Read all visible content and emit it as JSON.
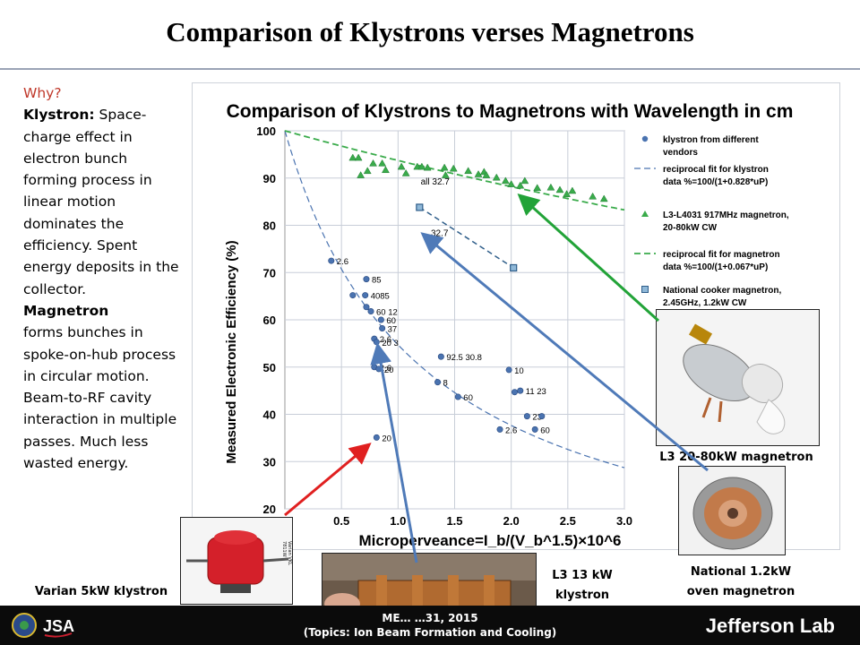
{
  "slide": {
    "title": "Comparison of Klystrons verses Magnetrons"
  },
  "left_text": {
    "why": "Why?",
    "klystron_label": "Klystron:",
    "klystron_body": " Space-charge effect in electron bunch forming process in linear motion dominates the efficiency. Spent energy deposits in the collector.",
    "magnetron_label": "Magnetron",
    "magnetron_body": "forms bunches in spoke-on-hub process in circular motion. Beam-to-RF cavity interaction in multiple passes. Much less wasted energy."
  },
  "captions": {
    "l3_magnetron": "L3 20-80kW magnetron",
    "national": "National 1.2kW oven magnetron",
    "varian": "Varian 5kW klystron",
    "l3_klystron": "L3 13 kW klystron",
    "varian_label": "Varian VKL 7811W"
  },
  "footer": {
    "line1": "ME… …31, 2015",
    "line2": "(Topics: Ion Beam Formation and Cooling)",
    "brand": "Jefferson Lab"
  },
  "colors": {
    "klystron": "#4a73b0",
    "magnetron": "#3aab4b",
    "national": "#2f5e8a",
    "arrow_red": "#e02020",
    "arrow_green": "#22a338",
    "arrow_blue": "#4f7ab8"
  },
  "chart_data": {
    "type": "scatter",
    "title": "Comparison of Klystrons to  Magnetrons with Wavelength in cm",
    "xlabel": "Microperveance=I_b/(V_b^1.5)×10^6",
    "ylabel": "Measured Electronic Efficiency (%)",
    "xlim": [
      0,
      3.0
    ],
    "ylim": [
      20,
      100
    ],
    "x_ticks": [
      "0.5",
      "1.0",
      "1.5",
      "2.0",
      "2.5",
      "3.0"
    ],
    "y_ticks": [
      "20",
      "30",
      "40",
      "50",
      "60",
      "70",
      "80",
      "90",
      "100"
    ],
    "grid": true,
    "legend_position": "right",
    "series": [
      {
        "name": "klystron from different vendors",
        "kind": "points",
        "marker": "circle",
        "points": [
          {
            "x": 0.41,
            "y": 72.5,
            "label": "2.6"
          },
          {
            "x": 0.6,
            "y": 65.2,
            "label": ""
          },
          {
            "x": 0.72,
            "y": 68.6,
            "label": "85"
          },
          {
            "x": 0.71,
            "y": 65.2,
            "label": "4085"
          },
          {
            "x": 0.72,
            "y": 62.7,
            "label": ""
          },
          {
            "x": 0.76,
            "y": 61.8,
            "label": "60 12"
          },
          {
            "x": 0.85,
            "y": 60.0,
            "label": "60"
          },
          {
            "x": 0.86,
            "y": 58.2,
            "label": "37"
          },
          {
            "x": 0.79,
            "y": 56.0,
            "label": "2.6"
          },
          {
            "x": 0.81,
            "y": 55.3,
            "label": "20 3"
          },
          {
            "x": 0.79,
            "y": 50.0,
            "label": "2.6"
          },
          {
            "x": 0.83,
            "y": 49.6,
            "label": "20"
          },
          {
            "x": 1.38,
            "y": 52.2,
            "label": "92.5 30.8"
          },
          {
            "x": 1.35,
            "y": 46.8,
            "label": "8"
          },
          {
            "x": 1.53,
            "y": 43.7,
            "label": "60"
          },
          {
            "x": 1.98,
            "y": 49.4,
            "label": "10"
          },
          {
            "x": 2.03,
            "y": 44.7,
            "label": ""
          },
          {
            "x": 2.08,
            "y": 45.0,
            "label": "11 23"
          },
          {
            "x": 2.14,
            "y": 39.6,
            "label": "23"
          },
          {
            "x": 2.27,
            "y": 39.6,
            "label": ""
          },
          {
            "x": 1.9,
            "y": 36.8,
            "label": "2.6"
          },
          {
            "x": 2.21,
            "y": 36.8,
            "label": "60"
          },
          {
            "x": 0.81,
            "y": 35.1,
            "label": "20"
          }
        ]
      },
      {
        "name": "reciprocal fit for klystron data %=100/(1+0.828*uP)",
        "kind": "line",
        "style": "dashed",
        "formula_k": 0.828,
        "x_range": [
          0.0,
          3.0
        ]
      },
      {
        "name": "L3-L4031 917MHz magnetron, 20-80kW CW",
        "kind": "points",
        "marker": "triangle",
        "points": [
          {
            "x": 0.6,
            "y": 94.3
          },
          {
            "x": 0.65,
            "y": 94.3
          },
          {
            "x": 0.78,
            "y": 93.1
          },
          {
            "x": 0.86,
            "y": 93.1
          },
          {
            "x": 0.73,
            "y": 91.5
          },
          {
            "x": 0.67,
            "y": 90.6
          },
          {
            "x": 0.89,
            "y": 91.7
          },
          {
            "x": 1.03,
            "y": 92.4
          },
          {
            "x": 1.07,
            "y": 91.0
          },
          {
            "x": 1.17,
            "y": 92.4
          },
          {
            "x": 1.21,
            "y": 92.4
          },
          {
            "x": 1.26,
            "y": 92.2
          },
          {
            "x": 1.41,
            "y": 92.2
          },
          {
            "x": 1.49,
            "y": 92.0
          },
          {
            "x": 1.42,
            "y": 90.6
          },
          {
            "x": 1.62,
            "y": 91.5
          },
          {
            "x": 1.71,
            "y": 90.8
          },
          {
            "x": 1.76,
            "y": 91.3
          },
          {
            "x": 1.78,
            "y": 90.6
          },
          {
            "x": 1.87,
            "y": 90.1
          },
          {
            "x": 1.95,
            "y": 89.4
          },
          {
            "x": 2.0,
            "y": 88.7
          },
          {
            "x": 2.08,
            "y": 88.4
          },
          {
            "x": 2.12,
            "y": 89.4
          },
          {
            "x": 2.23,
            "y": 87.9
          },
          {
            "x": 2.35,
            "y": 88.0
          },
          {
            "x": 2.43,
            "y": 87.5
          },
          {
            "x": 2.49,
            "y": 86.6
          },
          {
            "x": 2.54,
            "y": 87.3
          },
          {
            "x": 2.72,
            "y": 86.1
          },
          {
            "x": 2.82,
            "y": 85.6
          }
        ]
      },
      {
        "name": "reciprocal fit for magnetron data %=100/(1+0.067*uP)",
        "kind": "line",
        "style": "dashed",
        "formula_k": 0.067,
        "x_range": [
          0.0,
          3.0
        ]
      },
      {
        "name": "National cooker magnetron, 2.45GHz, 1.2kW CW",
        "kind": "points",
        "marker": "square",
        "connected": true,
        "points": [
          {
            "x": 1.19,
            "y": 83.8
          },
          {
            "x": 2.02,
            "y": 71.0
          }
        ]
      }
    ],
    "annotations": [
      {
        "text": "all 32.7",
        "x": 1.2,
        "y": 88.6
      },
      {
        "text": "32.7",
        "x": 1.29,
        "y": 77.7
      }
    ]
  }
}
